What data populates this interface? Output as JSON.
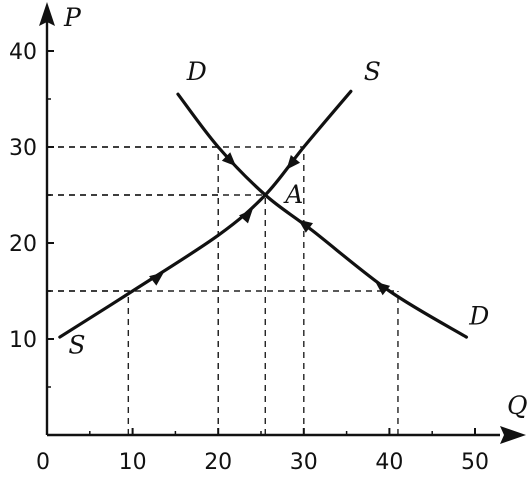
{
  "chart_data": {
    "type": "line",
    "xlabel": "Q",
    "ylabel": "P",
    "xlim": [
      0,
      55
    ],
    "ylim": [
      0,
      45
    ],
    "x_ticks": [
      0,
      10,
      20,
      30,
      40,
      50
    ],
    "y_ticks": [
      10,
      20,
      30,
      40
    ],
    "x_tick_labels": [
      "0",
      "10",
      "20",
      "30",
      "40",
      "50"
    ],
    "y_tick_labels": [
      "10",
      "20",
      "30",
      "40"
    ],
    "series": [
      {
        "name": "D",
        "values": [
          [
            15.3,
            35.5
          ],
          [
            20,
            30
          ],
          [
            25.5,
            25
          ],
          [
            31,
            21.3
          ],
          [
            40,
            15
          ],
          [
            49,
            10.2
          ]
        ],
        "arrows_toward_equilibrium": [
          [
            21.5,
            28.5
          ],
          [
            30,
            22
          ],
          [
            39,
            15.5
          ]
        ]
      },
      {
        "name": "S",
        "values": [
          [
            1.5,
            10.2
          ],
          [
            10,
            15
          ],
          [
            20,
            20.8
          ],
          [
            25.5,
            25
          ],
          [
            30,
            30
          ],
          [
            35.5,
            35.8
          ]
        ],
        "arrows_toward_equilibrium": [
          [
            13,
            16.5
          ],
          [
            23.5,
            23
          ],
          [
            28.5,
            28.2
          ]
        ]
      }
    ],
    "equilibrium": {
      "label": "A",
      "x": 25.5,
      "y": 25
    },
    "guide_lines": [
      {
        "x": 9.5,
        "y": 15
      },
      {
        "x": 20,
        "y": 30
      },
      {
        "x": 25.5,
        "y": 25
      },
      {
        "x": 30,
        "y": 30
      },
      {
        "x": 41,
        "y": 15
      },
      {
        "x": 20,
        "y": 25
      }
    ],
    "curve_labels": [
      {
        "text": "D",
        "x": 17.5,
        "y": 37
      },
      {
        "text": "S",
        "x": 38,
        "y": 37
      },
      {
        "text": "S",
        "x": 3.5,
        "y": 8.5
      },
      {
        "text": "D",
        "x": 50.5,
        "y": 11.5
      }
    ],
    "grid": false,
    "colors": {
      "ink": "#111111"
    }
  }
}
